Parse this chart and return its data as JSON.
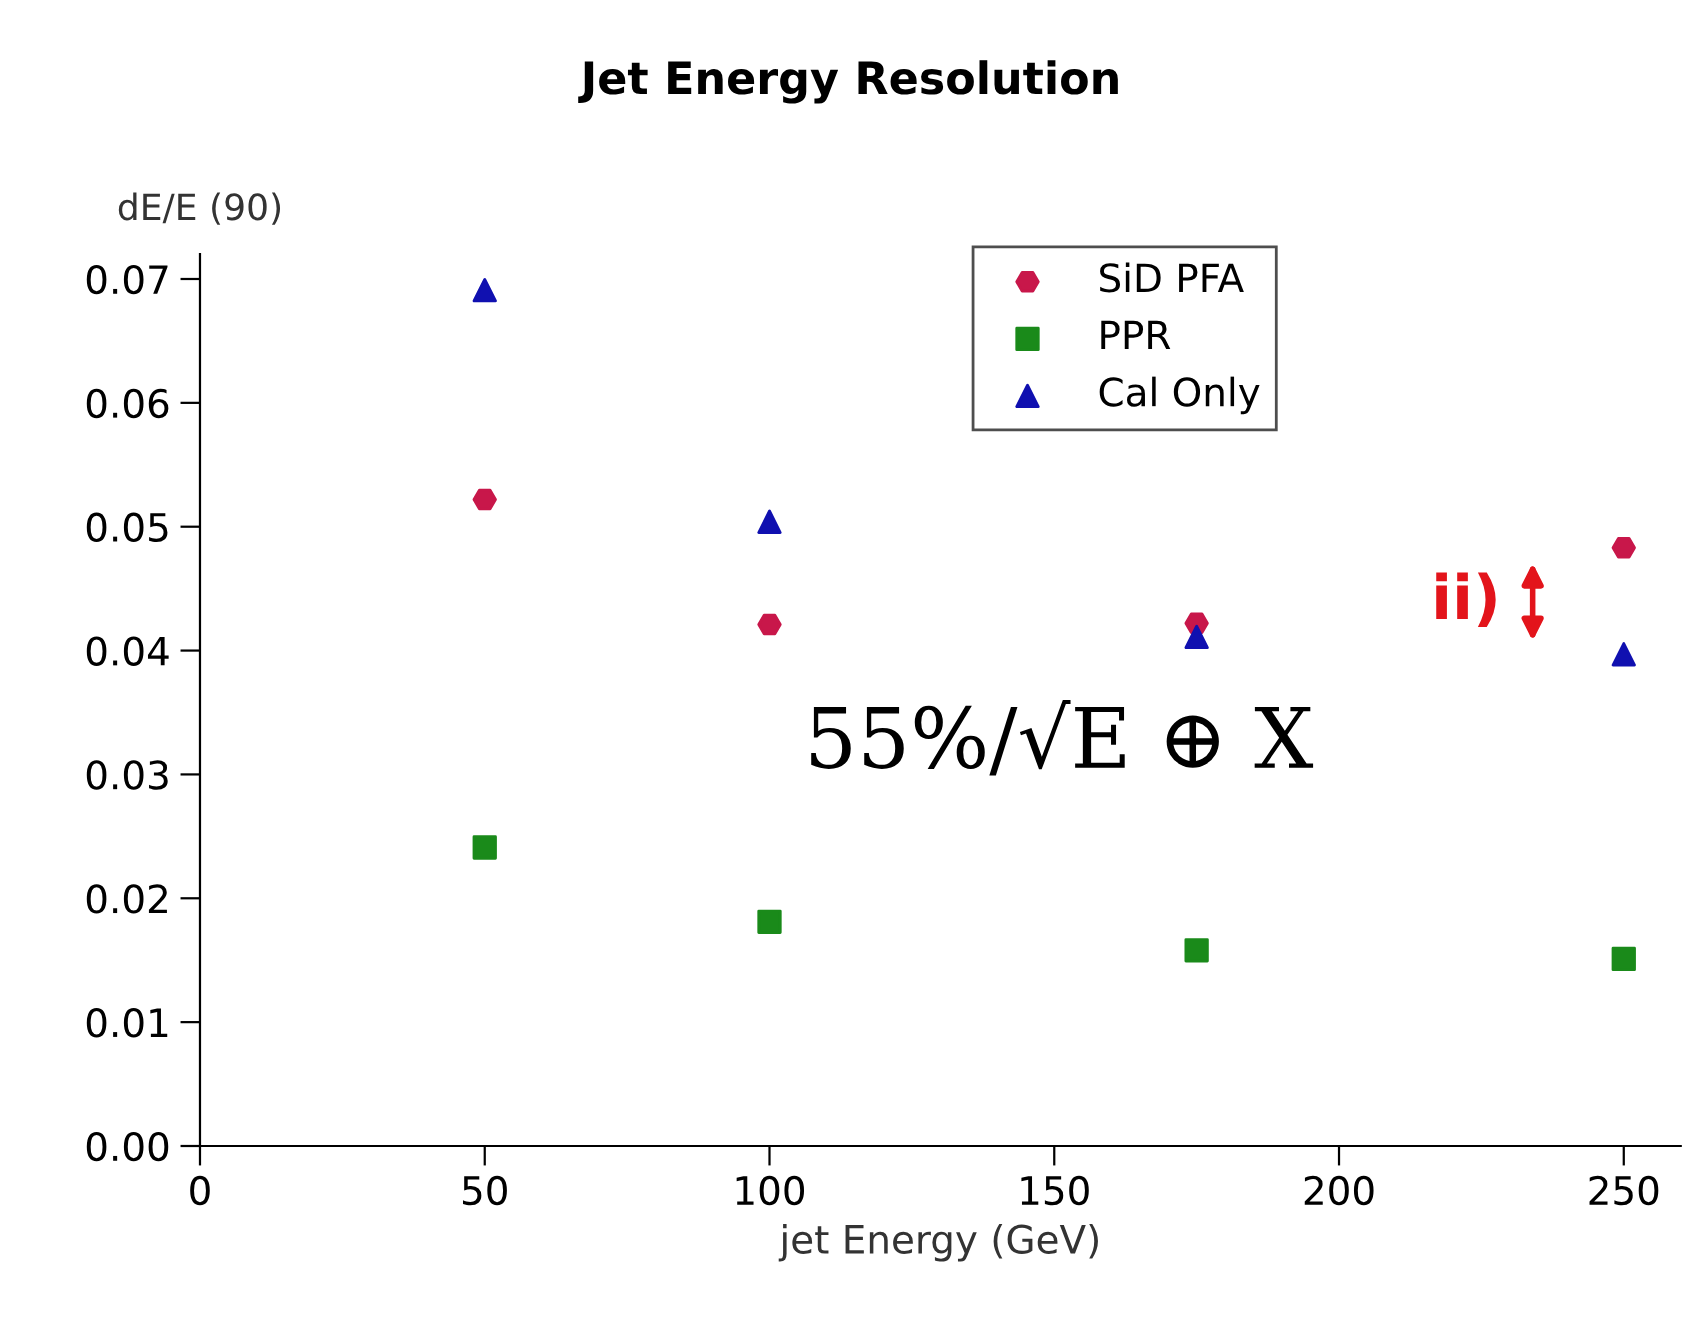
{
  "chart_data": {
    "type": "scatter",
    "title": "Jet Energy Resolution",
    "xlabel": "jet Energy (GeV)",
    "ylabel": "dE/E (90)",
    "x": [
      50,
      100,
      175,
      250
    ],
    "series": [
      {
        "name": "SiD PFA",
        "color": "#c8174a",
        "marker": "circle",
        "values": [
          0.0522,
          0.0421,
          0.0422,
          0.0483
        ]
      },
      {
        "name": "PPR",
        "color": "#1a8a1a",
        "marker": "square",
        "values": [
          0.0241,
          0.0181,
          0.0158,
          0.0151
        ]
      },
      {
        "name": "Cal Only",
        "color": "#1010b0",
        "marker": "triangle",
        "values": [
          0.0691,
          0.0504,
          0.0411,
          0.0397
        ]
      }
    ],
    "xlim": [
      0,
      260
    ],
    "xticks": [
      0,
      50,
      100,
      150,
      200,
      250
    ],
    "ylim": [
      0,
      0.072
    ],
    "yticks": [
      {
        "value": 0,
        "label": "0.00"
      },
      {
        "value": 0.01,
        "label": "0.01"
      },
      {
        "value": 0.02,
        "label": "0.02"
      },
      {
        "value": 0.03,
        "label": "0.03"
      },
      {
        "value": 0.04,
        "label": "0.04"
      },
      {
        "value": 0.05,
        "label": "0.05"
      },
      {
        "value": 0.06,
        "label": "0.06"
      },
      {
        "value": 0.07,
        "label": "0.07"
      }
    ],
    "annotations": [
      "55%/√E ⊕ X",
      "ii)"
    ],
    "legend": "top right",
    "grid": false
  }
}
